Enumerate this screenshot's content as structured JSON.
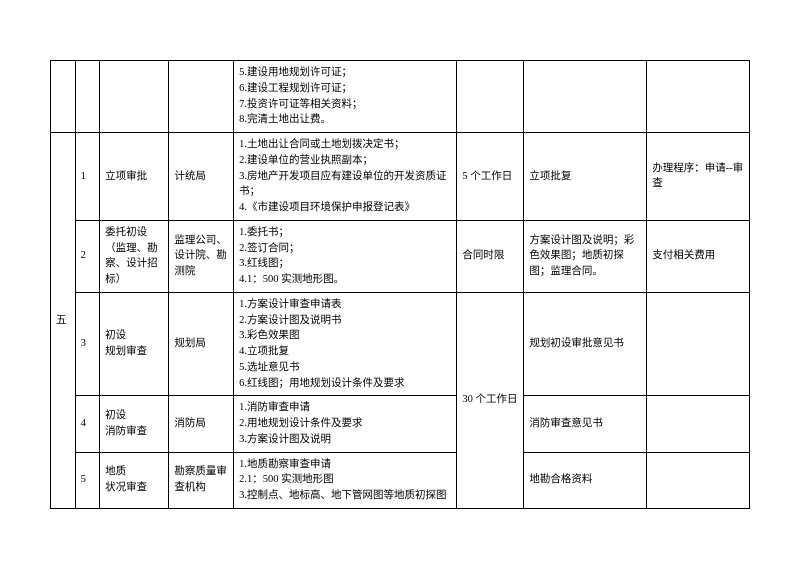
{
  "styling": {
    "font_family": "SimSun",
    "base_font_size_pt": 10.5,
    "border_color": "#000000",
    "background": "#ffffff",
    "text_color": "#000000"
  },
  "top_row": {
    "materials": [
      "5.建设用地规划许可证；",
      "6.建设工程规划许可证；",
      "7.投资许可证等相关资料；",
      "8.完清土地出让费。"
    ]
  },
  "section": {
    "label": "五"
  },
  "rows": [
    {
      "num": "1",
      "item": "立项审批",
      "dept": "计统局",
      "materials": [
        "1.土地出让合同或土地划拨决定书；",
        "2.建设单位的营业执照副本；",
        "3.房地产开发项目应有建设单位的开发资质证书；",
        "4.《市建设项目环境保护申报登记表》"
      ],
      "duration": "5 个工作日",
      "output": "立项批复",
      "procedure": "办理程序：申请--审查"
    },
    {
      "num": "2",
      "item": "委托初设（监理、勘察、设计招标）",
      "dept": "监理公司、设计院、勘测院",
      "materials": [
        "1.委托书；",
        "2.签订合同；",
        "3.红线图；",
        "4.1：500 实测地形图。"
      ],
      "duration": "合同时限",
      "output": "方案设计图及说明；彩色效果图；地质初探图；监理合同。",
      "procedure": "支付相关费用"
    },
    {
      "num": "3",
      "item": "初设\n规划审查",
      "dept": "规划局",
      "materials": [
        "1.方案设计审查申请表",
        "2.方案设计图及说明书",
        "3.彩色效果图",
        "4.立项批复",
        "5.选址意见书",
        "6.红线图；用地规划设计条件及要求"
      ],
      "output": "规划初设审批意见书"
    },
    {
      "num": "4",
      "item": "初设\n消防审查",
      "dept": "消防局",
      "materials": [
        "1.消防审查申请",
        "2.用地规划设计条件及要求",
        "3.方案设计图及说明"
      ],
      "output": "消防审查意见书"
    },
    {
      "num": "5",
      "item": "地质\n状况审查",
      "dept": "勘察质量审查机构",
      "materials": [
        "1.地质勘察审查申请",
        "2.1：500 实测地形图",
        "3.控制点、地标高、地下管网图等地质初探图"
      ],
      "output": "地勘合格资料"
    }
  ],
  "merged_duration_345": "30 个工作日"
}
